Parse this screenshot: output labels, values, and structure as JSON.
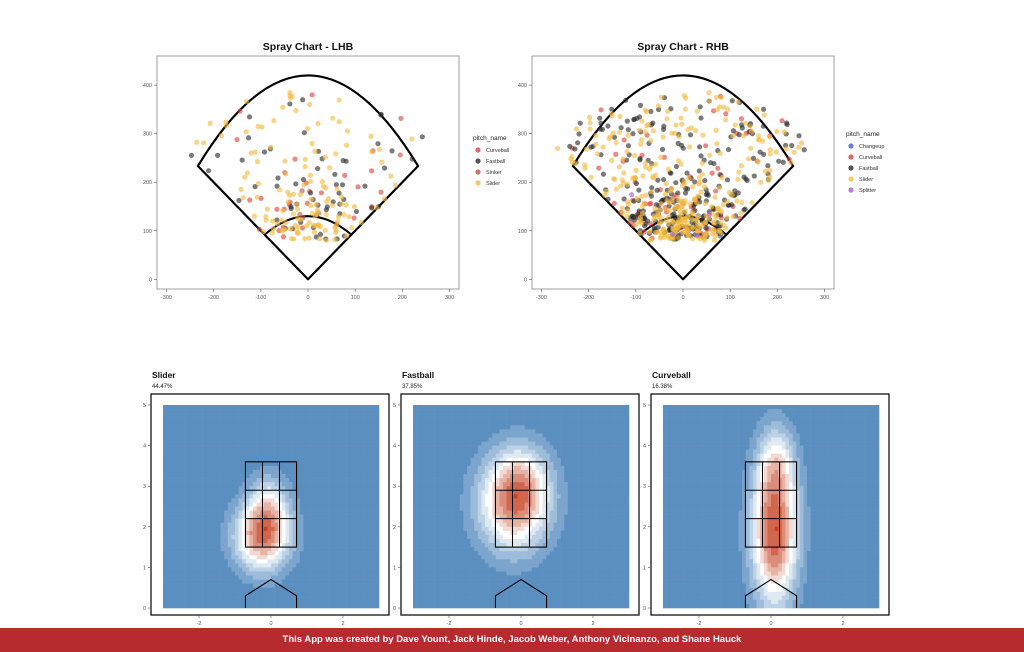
{
  "footer_text": "This App was created by Dave Yount, Jack Hinde, Jacob Weber, Anthony Vicinanzo, and Shane Hauck",
  "colors": {
    "Changeup": "#4a58d8",
    "Curveball": "#e0403a",
    "Fastball": "#2a2a2a",
    "Sinker": "#c2503f",
    "Slider": "#f2b93e",
    "Splitter": "#a65ad8",
    "heat_low": "#5b8fc0",
    "heat_mid": "#ffffff",
    "heat_high": "#c4401f",
    "footer_bg": "#b52b2e"
  },
  "chart_data": [
    {
      "type": "scatter",
      "title": "Spray Chart - LHB",
      "legend_title": "pitch_name",
      "legend_position": "right",
      "grid": false,
      "xlim": [
        -320,
        320
      ],
      "ylim": [
        -20,
        460
      ],
      "xticks": [
        -300,
        -200,
        -100,
        0,
        100,
        200,
        300
      ],
      "yticks": [
        0,
        100,
        200,
        300,
        400
      ],
      "field": {
        "foul_line_length": 330,
        "wall_arc_radius": 420,
        "infield_arc_radius": 130
      },
      "series": [
        {
          "name": "Curveball",
          "n": 26,
          "seed": 11
        },
        {
          "name": "Fastball",
          "n": 60,
          "seed": 12
        },
        {
          "name": "Sinker",
          "n": 8,
          "seed": 13
        },
        {
          "name": "Slider",
          "n": 135,
          "seed": 14
        }
      ]
    },
    {
      "type": "scatter",
      "title": "Spray Chart - RHB",
      "legend_title": "pitch_name",
      "legend_position": "right",
      "grid": false,
      "xlim": [
        -320,
        320
      ],
      "ylim": [
        -20,
        460
      ],
      "xticks": [
        -300,
        -200,
        -100,
        0,
        100,
        200,
        300
      ],
      "yticks": [
        0,
        100,
        200,
        300,
        400
      ],
      "field": {
        "foul_line_length": 330,
        "wall_arc_radius": 420,
        "infield_arc_radius": 130
      },
      "series": [
        {
          "name": "Changeup",
          "n": 4,
          "seed": 21
        },
        {
          "name": "Curveball",
          "n": 70,
          "seed": 22
        },
        {
          "name": "Fastball",
          "n": 260,
          "seed": 23
        },
        {
          "name": "Slider",
          "n": 330,
          "seed": 24
        },
        {
          "name": "Splitter",
          "n": 4,
          "seed": 25
        }
      ]
    },
    {
      "type": "heatmap",
      "title": "Slider",
      "subtitle": "44.47%",
      "xlim": [
        -3,
        3
      ],
      "ylim": [
        0,
        5
      ],
      "xticks": [
        -2,
        0,
        2
      ],
      "yticks": [
        0,
        1,
        2,
        3,
        4,
        5
      ],
      "strike_zone": {
        "x": [
          -0.71,
          0.71
        ],
        "y": [
          1.5,
          3.6
        ]
      },
      "density_peaks": [
        {
          "x": -0.25,
          "y": 1.75,
          "sx": 0.55,
          "sy": 0.6,
          "w": 1.0
        },
        {
          "x": -0.05,
          "y": 2.55,
          "sx": 0.4,
          "sy": 0.55,
          "w": 0.45
        }
      ]
    },
    {
      "type": "heatmap",
      "title": "Fastball",
      "subtitle": "37.85%",
      "xlim": [
        -3,
        3
      ],
      "ylim": [
        0,
        5
      ],
      "xticks": [
        -2,
        0,
        2
      ],
      "yticks": [
        0,
        1,
        2,
        3,
        4,
        5
      ],
      "strike_zone": {
        "x": [
          -0.71,
          0.71
        ],
        "y": [
          1.5,
          3.6
        ]
      },
      "density_peaks": [
        {
          "x": -0.2,
          "y": 2.6,
          "sx": 0.7,
          "sy": 0.85,
          "w": 1.0
        },
        {
          "x": 0.1,
          "y": 3.2,
          "sx": 0.5,
          "sy": 0.6,
          "w": 0.25
        }
      ]
    },
    {
      "type": "heatmap",
      "title": "Curveball",
      "subtitle": "16.38%",
      "xlim": [
        -3,
        3
      ],
      "ylim": [
        0,
        5
      ],
      "xticks": [
        -2,
        0,
        2
      ],
      "yticks": [
        0,
        1,
        2,
        3,
        4,
        5
      ],
      "strike_zone": {
        "x": [
          -0.71,
          0.71
        ],
        "y": [
          1.5,
          3.6
        ]
      },
      "density_peaks": [
        {
          "x": 0.1,
          "y": 1.9,
          "sx": 0.45,
          "sy": 1.3,
          "w": 1.0
        },
        {
          "x": 0.15,
          "y": 3.6,
          "sx": 0.35,
          "sy": 0.6,
          "w": 0.3
        }
      ]
    }
  ]
}
